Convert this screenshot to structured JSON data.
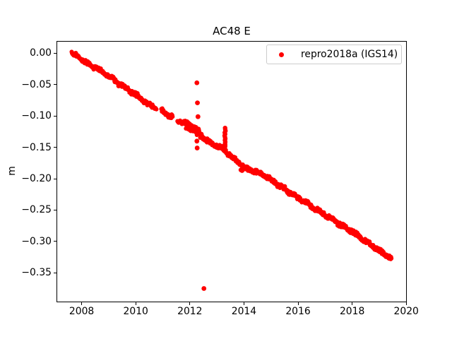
{
  "figure": {
    "background": "#ffffff"
  },
  "chart_data": {
    "type": "scatter",
    "title": "AC48 E",
    "xlabel": "",
    "ylabel": "m",
    "grid": false,
    "legend_position": "upper right",
    "legend": [
      {
        "label": "repro2018a (IGS14)",
        "marker": "dot",
        "color": "#ff0000"
      }
    ],
    "xlim": [
      2007.07,
      2020.02
    ],
    "ylim": [
      -0.397,
      0.0197
    ],
    "xticks": [
      2008,
      2010,
      2012,
      2014,
      2016,
      2018,
      2020
    ],
    "xtick_labels": [
      "2008",
      "2010",
      "2012",
      "2014",
      "2016",
      "2018",
      "2020"
    ],
    "yticks": [
      0.0,
      -0.05,
      -0.1,
      -0.15,
      -0.2,
      -0.25,
      -0.3,
      -0.35
    ],
    "ytick_labels": [
      "0.00",
      "−0.05",
      "−0.10",
      "−0.15",
      "−0.20",
      "−0.25",
      "−0.30",
      "−0.35"
    ],
    "series": [
      {
        "name": "repro2018a (IGS14)",
        "color": "#ff0000",
        "marker_radius_px": 3.0,
        "sample_step_years": 0.012,
        "noise_amplitude": 0.002,
        "wiggle_amplitude": 0.0012,
        "wiggle_period_years": 0.45,
        "trend_anchors": [
          [
            2007.63,
            0.002
          ],
          [
            2007.75,
            -0.002
          ],
          [
            2008.0,
            -0.01
          ],
          [
            2008.38,
            -0.02
          ],
          [
            2008.8,
            -0.031
          ],
          [
            2009.25,
            -0.044
          ],
          [
            2009.7,
            -0.057
          ],
          [
            2010.12,
            -0.07
          ],
          [
            2010.55,
            -0.084
          ],
          [
            2010.77,
            -0.088
          ],
          [
            2010.93,
            -0.0915
          ],
          [
            2011.2,
            -0.098
          ],
          [
            2011.4,
            -0.103
          ],
          [
            2011.6,
            -0.108
          ],
          [
            2011.86,
            -0.112
          ],
          [
            2012.0,
            -0.116
          ],
          [
            2012.15,
            -0.12
          ],
          [
            2012.29,
            -0.126
          ],
          [
            2012.5,
            -0.135
          ],
          [
            2012.73,
            -0.1418
          ],
          [
            2013.0,
            -0.148
          ],
          [
            2013.16,
            -0.1513
          ],
          [
            2013.35,
            -0.158
          ],
          [
            2013.6,
            -0.166
          ],
          [
            2013.8,
            -0.174
          ],
          [
            2014.03,
            -0.1832
          ],
          [
            2014.47,
            -0.1888
          ],
          [
            2014.9,
            -0.198
          ],
          [
            2015.34,
            -0.2114
          ],
          [
            2015.77,
            -0.2246
          ],
          [
            2016.21,
            -0.2358
          ],
          [
            2016.64,
            -0.2478
          ],
          [
            2017.08,
            -0.2602
          ],
          [
            2017.51,
            -0.2715
          ],
          [
            2017.95,
            -0.2828
          ],
          [
            2018.38,
            -0.2967
          ],
          [
            2018.81,
            -0.3091
          ],
          [
            2019.25,
            -0.3215
          ],
          [
            2019.46,
            -0.327
          ]
        ],
        "gaps": [
          [
            2010.77,
            2010.93
          ],
          [
            2011.37,
            2011.53
          ]
        ],
        "noisy_cluster": {
          "x_range": [
            2011.85,
            2012.45
          ],
          "extra_amplitude": 0.007
        },
        "spike": {
          "x": 2013.3,
          "v_from": -0.156,
          "v_to": -0.119,
          "points": 16,
          "x_jitter": 0.018
        },
        "outliers": [
          [
            2012.26,
            -0.047
          ],
          [
            2012.28,
            -0.079
          ],
          [
            2012.3,
            -0.101
          ],
          [
            2012.26,
            -0.14
          ],
          [
            2012.27,
            -0.151
          ],
          [
            2012.52,
            -0.375
          ],
          [
            2013.89,
            -0.186
          ],
          [
            2013.93,
            -0.187
          ]
        ]
      }
    ]
  }
}
